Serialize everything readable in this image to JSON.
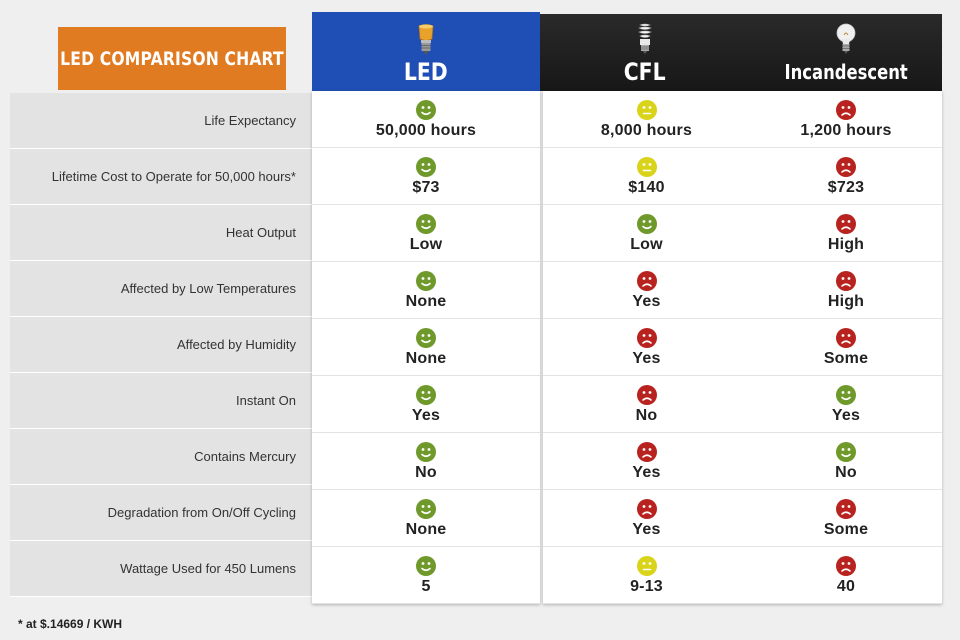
{
  "title": "LED COMPARISON CHART",
  "columns": [
    {
      "label": "LED",
      "bulb_icon": "led-bulb-icon"
    },
    {
      "label": "CFL",
      "bulb_icon": "cfl-bulb-icon"
    },
    {
      "label": "Incandescent",
      "bulb_icon": "incandescent-bulb-icon"
    }
  ],
  "rating_colors": {
    "good": "#6f9a2b",
    "neutral": "#d9d41a",
    "bad": "#b8231f"
  },
  "header_colors": {
    "title_bg": "#e07b22",
    "led_bg": "#1f4fb5",
    "other_bg": "#222222"
  },
  "rows": [
    {
      "label": "Life Expectancy",
      "cells": [
        {
          "rating": "good",
          "value": "50,000 hours"
        },
        {
          "rating": "neutral",
          "value": "8,000 hours"
        },
        {
          "rating": "bad",
          "value": "1,200 hours"
        }
      ]
    },
    {
      "label": "Lifetime Cost to Operate for 50,000 hours*",
      "cells": [
        {
          "rating": "good",
          "value": "$73"
        },
        {
          "rating": "neutral",
          "value": "$140"
        },
        {
          "rating": "bad",
          "value": "$723"
        }
      ]
    },
    {
      "label": "Heat Output",
      "cells": [
        {
          "rating": "good",
          "value": "Low"
        },
        {
          "rating": "good",
          "value": "Low"
        },
        {
          "rating": "bad",
          "value": "High"
        }
      ]
    },
    {
      "label": "Affected by Low Temperatures",
      "cells": [
        {
          "rating": "good",
          "value": "None"
        },
        {
          "rating": "bad",
          "value": "Yes"
        },
        {
          "rating": "bad",
          "value": "High"
        }
      ]
    },
    {
      "label": "Affected by Humidity",
      "cells": [
        {
          "rating": "good",
          "value": "None"
        },
        {
          "rating": "bad",
          "value": "Yes"
        },
        {
          "rating": "bad",
          "value": "Some"
        }
      ]
    },
    {
      "label": "Instant On",
      "cells": [
        {
          "rating": "good",
          "value": "Yes"
        },
        {
          "rating": "bad",
          "value": "No"
        },
        {
          "rating": "good",
          "value": "Yes"
        }
      ]
    },
    {
      "label": "Contains Mercury",
      "cells": [
        {
          "rating": "good",
          "value": "No"
        },
        {
          "rating": "bad",
          "value": "Yes"
        },
        {
          "rating": "good",
          "value": "No"
        }
      ]
    },
    {
      "label": "Degradation from On/Off Cycling",
      "cells": [
        {
          "rating": "good",
          "value": "None"
        },
        {
          "rating": "bad",
          "value": "Yes"
        },
        {
          "rating": "bad",
          "value": "Some"
        }
      ]
    },
    {
      "label": "Wattage Used for 450 Lumens",
      "cells": [
        {
          "rating": "good",
          "value": "5"
        },
        {
          "rating": "neutral",
          "value": "9-13"
        },
        {
          "rating": "bad",
          "value": "40"
        }
      ]
    }
  ],
  "footnote": "* at $.14669 / KWH"
}
